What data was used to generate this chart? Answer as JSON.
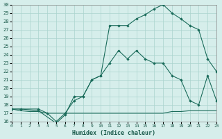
{
  "xlabel": "Humidex (Indice chaleur)",
  "background_color": "#d6eeeb",
  "grid_color": "#aad4ce",
  "line_color": "#1a6b5a",
  "xlim": [
    0,
    23
  ],
  "ylim": [
    16,
    30
  ],
  "xticks": [
    0,
    1,
    2,
    3,
    4,
    5,
    6,
    7,
    8,
    9,
    10,
    11,
    12,
    13,
    14,
    15,
    16,
    17,
    18,
    19,
    20,
    21,
    22,
    23
  ],
  "yticks": [
    16,
    17,
    18,
    19,
    20,
    21,
    22,
    23,
    24,
    25,
    26,
    27,
    28,
    29,
    30
  ],
  "curve1_x": [
    0,
    1,
    2,
    3,
    4,
    5,
    6,
    7,
    8,
    9,
    10,
    11,
    12,
    13,
    14,
    15,
    16,
    17,
    18,
    19,
    20,
    21,
    22,
    23
  ],
  "curve1_y": [
    17.5,
    17.3,
    17.2,
    17.2,
    17.0,
    17.0,
    17.0,
    17.0,
    17.0,
    17.0,
    17.0,
    17.0,
    17.0,
    17.0,
    17.0,
    17.0,
    17.0,
    17.0,
    17.2,
    17.2,
    17.3,
    17.3,
    17.3,
    17.3
  ],
  "curve2_x": [
    0,
    1,
    3,
    4,
    5,
    6,
    7,
    8,
    9,
    10,
    11,
    12,
    13,
    14,
    15,
    16,
    17,
    18,
    19,
    20,
    21,
    22,
    23
  ],
  "curve2_y": [
    17.5,
    17.5,
    17.5,
    17.0,
    16.0,
    17.0,
    18.5,
    19.0,
    21.0,
    21.5,
    23.0,
    24.5,
    23.5,
    24.5,
    23.5,
    23.0,
    23.0,
    21.5,
    21.0,
    18.5,
    18.0,
    21.5,
    18.5
  ],
  "curve3_x": [
    0,
    1,
    3,
    5,
    6,
    7,
    8,
    9,
    10,
    11,
    12,
    13,
    14,
    15,
    16,
    17,
    18,
    19,
    20,
    21,
    22,
    23
  ],
  "curve3_y": [
    17.5,
    17.5,
    17.3,
    15.8,
    16.8,
    19.0,
    19.0,
    21.0,
    21.5,
    27.5,
    27.5,
    27.5,
    28.3,
    28.8,
    29.5,
    30.0,
    29.0,
    28.3,
    27.5,
    27.0,
    23.5,
    22.0
  ]
}
